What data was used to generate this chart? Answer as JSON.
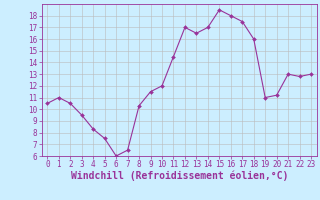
{
  "x": [
    0,
    1,
    2,
    3,
    4,
    5,
    6,
    7,
    8,
    9,
    10,
    11,
    12,
    13,
    14,
    15,
    16,
    17,
    18,
    19,
    20,
    21,
    22,
    23
  ],
  "y": [
    10.5,
    11.0,
    10.5,
    9.5,
    8.3,
    7.5,
    6.0,
    6.5,
    10.3,
    11.5,
    12.0,
    14.5,
    17.0,
    16.5,
    17.0,
    18.5,
    18.0,
    17.5,
    16.0,
    11.0,
    11.2,
    13.0,
    12.8,
    13.0
  ],
  "line_color": "#993399",
  "marker": "D",
  "marker_size": 2,
  "bg_color": "#cceeff",
  "grid_color": "#bbbbbb",
  "xlabel": "Windchill (Refroidissement éolien,°C)",
  "xlabel_color": "#993399",
  "tick_color": "#993399",
  "ylim": [
    6,
    19
  ],
  "yticks": [
    6,
    7,
    8,
    9,
    10,
    11,
    12,
    13,
    14,
    15,
    16,
    17,
    18
  ],
  "xticks": [
    0,
    1,
    2,
    3,
    4,
    5,
    6,
    7,
    8,
    9,
    10,
    11,
    12,
    13,
    14,
    15,
    16,
    17,
    18,
    19,
    20,
    21,
    22,
    23
  ],
  "tick_fontsize": 5.5,
  "xlabel_fontsize": 7.0
}
